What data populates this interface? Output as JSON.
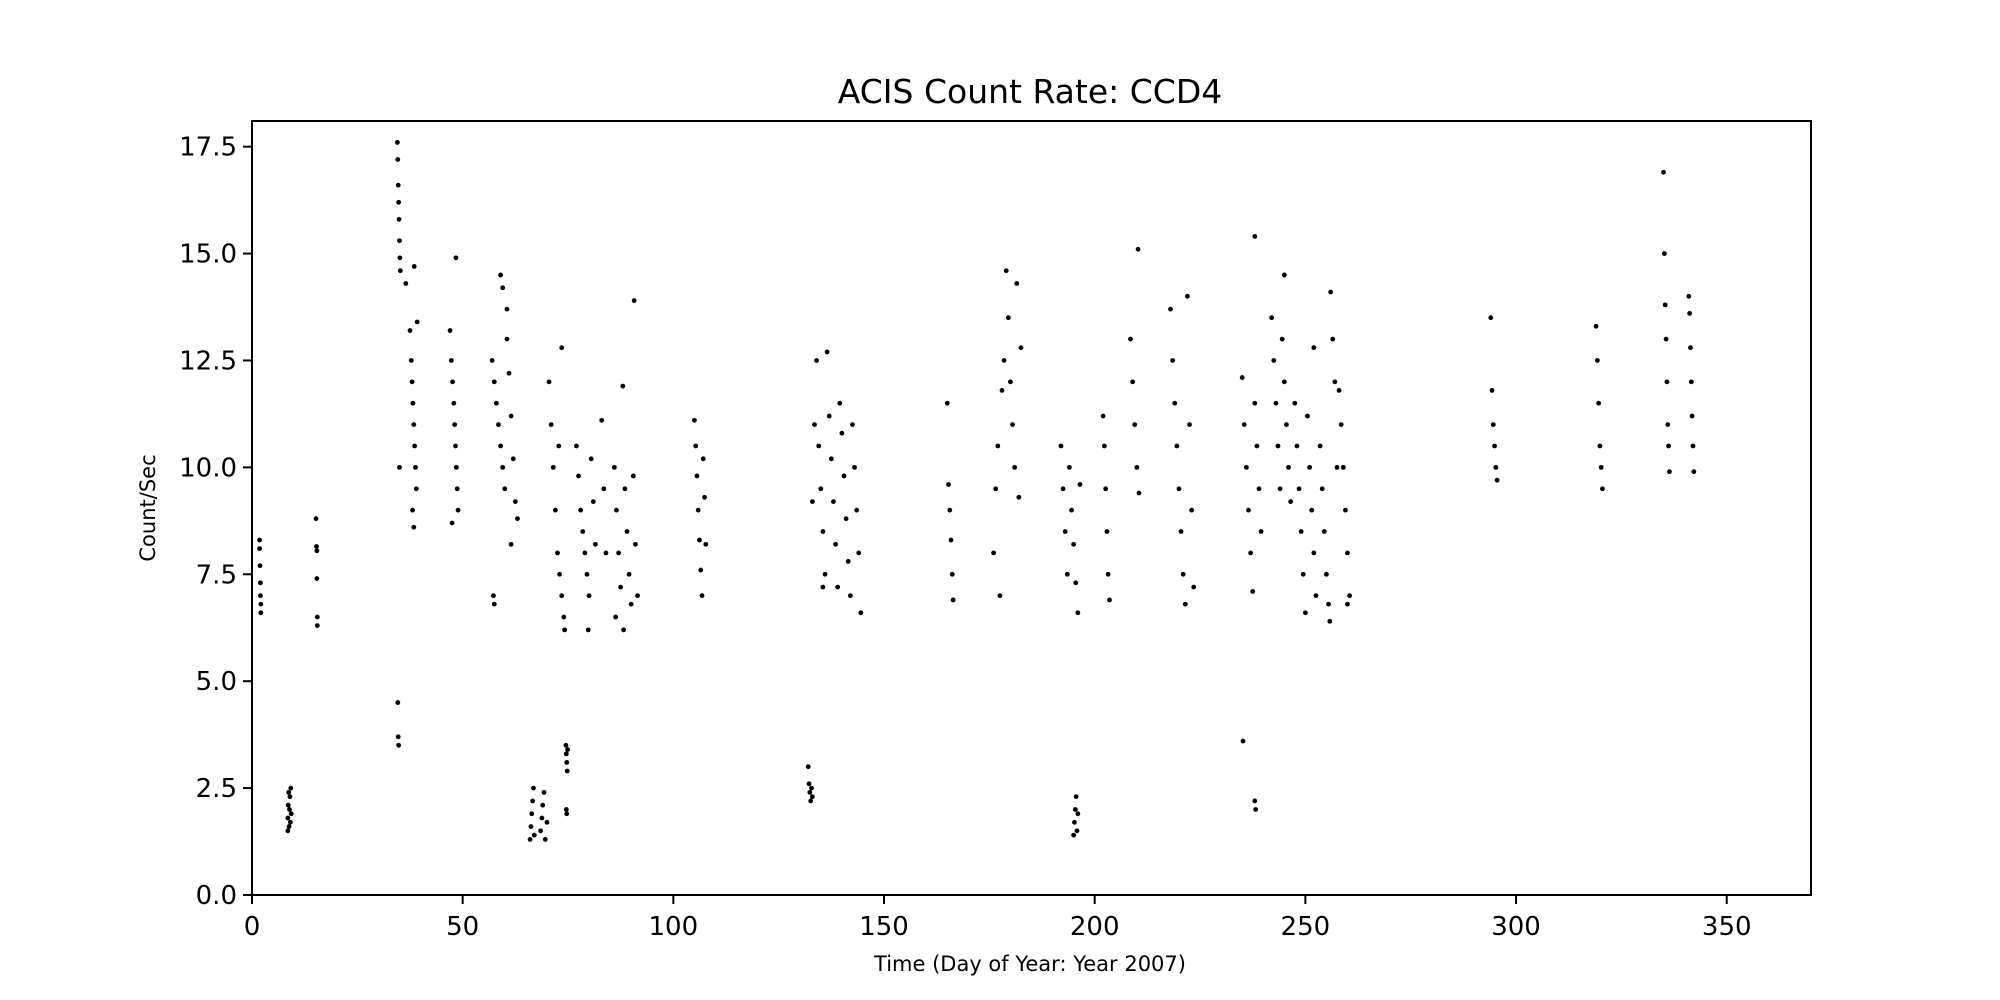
{
  "chart_data": {
    "type": "scatter",
    "title": "ACIS Count Rate: CCD4",
    "xlabel": "Time (Day of Year: Year 2007)",
    "ylabel": "Count/Sec",
    "xlim": [
      0,
      370
    ],
    "ylim": [
      0,
      18.1
    ],
    "xticks": [
      0,
      50,
      100,
      150,
      200,
      250,
      300,
      350
    ],
    "xtick_labels": [
      "0",
      "50",
      "100",
      "150",
      "200",
      "250",
      "300",
      "350"
    ],
    "yticks": [
      0,
      2.5,
      5,
      7.5,
      10,
      12.5,
      15,
      17.5
    ],
    "ytick_labels": [
      "0.0",
      "2.5",
      "5.0",
      "7.5",
      "10.0",
      "12.5",
      "15.0",
      "17.5"
    ],
    "grid": false,
    "legend": "none",
    "marker_color": "#000000",
    "series": [
      {
        "points": [
          [
            1.8,
            8.3
          ],
          [
            1.8,
            8.1
          ],
          [
            1.9,
            7.7
          ],
          [
            2.0,
            7.3
          ],
          [
            2.0,
            7.0
          ],
          [
            2.1,
            6.8
          ],
          [
            2.1,
            6.6
          ],
          [
            8.5,
            1.5
          ],
          [
            8.5,
            1.8
          ],
          [
            8.6,
            2.1
          ],
          [
            8.7,
            2.4
          ],
          [
            8.8,
            1.6
          ],
          [
            8.9,
            2.0
          ],
          [
            9.0,
            2.3
          ],
          [
            9.1,
            1.7
          ],
          [
            9.2,
            2.5
          ],
          [
            9.3,
            1.9
          ],
          [
            15.2,
            8.8
          ],
          [
            15.3,
            8.15
          ],
          [
            15.4,
            8.05
          ],
          [
            15.4,
            7.4
          ],
          [
            15.5,
            6.5
          ],
          [
            15.5,
            6.3
          ],
          [
            34.5,
            17.6
          ],
          [
            34.6,
            17.2
          ],
          [
            34.7,
            16.6
          ],
          [
            34.8,
            16.2
          ],
          [
            34.9,
            15.8
          ],
          [
            35.0,
            15.3
          ],
          [
            35.1,
            14.9
          ],
          [
            35.2,
            14.6
          ],
          [
            35.0,
            10.0
          ],
          [
            34.6,
            4.5
          ],
          [
            34.7,
            3.7
          ],
          [
            34.8,
            3.5
          ],
          [
            36.5,
            14.3
          ],
          [
            38.5,
            14.7
          ],
          [
            37.5,
            13.2
          ],
          [
            37.8,
            12.5
          ],
          [
            38.0,
            12.0
          ],
          [
            38.2,
            11.5
          ],
          [
            38.4,
            11.0
          ],
          [
            38.6,
            10.5
          ],
          [
            38.8,
            10.0
          ],
          [
            39.0,
            9.5
          ],
          [
            38.1,
            9.0
          ],
          [
            38.4,
            8.6
          ],
          [
            39.2,
            13.4
          ],
          [
            47.0,
            13.2
          ],
          [
            47.3,
            12.5
          ],
          [
            47.6,
            12.0
          ],
          [
            47.9,
            11.5
          ],
          [
            48.1,
            11.0
          ],
          [
            48.3,
            10.5
          ],
          [
            48.5,
            10.0
          ],
          [
            48.7,
            9.5
          ],
          [
            48.9,
            9.0
          ],
          [
            47.5,
            8.7
          ],
          [
            48.4,
            14.9
          ],
          [
            57.0,
            12.5
          ],
          [
            57.5,
            12.0
          ],
          [
            58.0,
            11.5
          ],
          [
            58.5,
            11.0
          ],
          [
            59.0,
            10.5
          ],
          [
            59.5,
            10.0
          ],
          [
            60.0,
            9.5
          ],
          [
            60.5,
            13.0
          ],
          [
            61.0,
            12.2
          ],
          [
            61.5,
            11.2
          ],
          [
            62.0,
            10.2
          ],
          [
            62.5,
            9.2
          ],
          [
            63.0,
            8.8
          ],
          [
            59.0,
            14.5
          ],
          [
            59.5,
            14.2
          ],
          [
            60.5,
            13.7
          ],
          [
            57.3,
            7.0
          ],
          [
            57.5,
            6.8
          ],
          [
            61.5,
            8.2
          ],
          [
            66.0,
            1.3
          ],
          [
            66.2,
            1.6
          ],
          [
            66.4,
            1.9
          ],
          [
            66.6,
            2.2
          ],
          [
            66.8,
            2.5
          ],
          [
            67.0,
            1.4
          ],
          [
            68.5,
            1.5
          ],
          [
            68.8,
            1.8
          ],
          [
            69.0,
            2.1
          ],
          [
            69.3,
            2.4
          ],
          [
            69.6,
            1.3
          ],
          [
            70.0,
            1.7
          ],
          [
            70.5,
            12.0
          ],
          [
            71.0,
            11.0
          ],
          [
            71.5,
            10.0
          ],
          [
            72.0,
            9.0
          ],
          [
            72.5,
            8.0
          ],
          [
            73.0,
            7.5
          ],
          [
            73.5,
            7.0
          ],
          [
            74.0,
            6.5
          ],
          [
            74.2,
            6.2
          ],
          [
            73.5,
            12.8
          ],
          [
            72.8,
            10.5
          ],
          [
            74.5,
            3.5
          ],
          [
            74.6,
            3.3
          ],
          [
            74.7,
            3.1
          ],
          [
            74.8,
            2.9
          ],
          [
            74.9,
            3.4
          ],
          [
            74.6,
            2.0
          ],
          [
            74.7,
            1.9
          ],
          [
            77.0,
            10.5
          ],
          [
            77.5,
            9.8
          ],
          [
            78.0,
            9.0
          ],
          [
            78.5,
            8.5
          ],
          [
            79.0,
            8.0
          ],
          [
            79.5,
            7.5
          ],
          [
            80.0,
            7.0
          ],
          [
            80.5,
            10.2
          ],
          [
            81.0,
            9.2
          ],
          [
            81.5,
            8.2
          ],
          [
            79.8,
            6.2
          ],
          [
            83.0,
            11.1
          ],
          [
            83.5,
            9.5
          ],
          [
            84.0,
            8.0
          ],
          [
            86.0,
            10.0
          ],
          [
            86.5,
            9.0
          ],
          [
            87.0,
            8.0
          ],
          [
            87.5,
            7.2
          ],
          [
            88.0,
            11.9
          ],
          [
            88.5,
            9.5
          ],
          [
            89.0,
            8.5
          ],
          [
            89.5,
            7.5
          ],
          [
            90.0,
            6.8
          ],
          [
            90.5,
            9.8
          ],
          [
            91.0,
            8.2
          ],
          [
            91.5,
            7.0
          ],
          [
            90.7,
            13.9
          ],
          [
            88.2,
            6.2
          ],
          [
            86.3,
            6.5
          ],
          [
            105.0,
            11.1
          ],
          [
            105.3,
            10.5
          ],
          [
            105.6,
            9.8
          ],
          [
            105.9,
            9.0
          ],
          [
            106.2,
            8.3
          ],
          [
            106.5,
            7.6
          ],
          [
            106.8,
            7.0
          ],
          [
            107.1,
            10.2
          ],
          [
            107.4,
            9.3
          ],
          [
            107.7,
            8.2
          ],
          [
            132.0,
            3.0
          ],
          [
            132.2,
            2.6
          ],
          [
            132.4,
            2.4
          ],
          [
            132.6,
            2.2
          ],
          [
            132.8,
            2.5
          ],
          [
            133.0,
            2.3
          ],
          [
            133.0,
            9.2
          ],
          [
            133.5,
            11.0
          ],
          [
            134.0,
            12.5
          ],
          [
            134.5,
            10.5
          ],
          [
            135.0,
            9.5
          ],
          [
            135.5,
            8.5
          ],
          [
            136.0,
            7.5
          ],
          [
            136.5,
            12.7
          ],
          [
            137.0,
            11.2
          ],
          [
            137.5,
            10.2
          ],
          [
            138.0,
            9.2
          ],
          [
            138.5,
            8.2
          ],
          [
            139.0,
            7.2
          ],
          [
            139.5,
            11.5
          ],
          [
            140.0,
            10.8
          ],
          [
            140.5,
            9.8
          ],
          [
            141.0,
            8.8
          ],
          [
            141.5,
            7.8
          ],
          [
            142.0,
            7.0
          ],
          [
            142.5,
            11.0
          ],
          [
            143.0,
            10.0
          ],
          [
            143.5,
            9.0
          ],
          [
            144.0,
            8.0
          ],
          [
            144.5,
            6.6
          ],
          [
            135.5,
            7.2
          ],
          [
            165.0,
            11.5
          ],
          [
            165.3,
            9.6
          ],
          [
            165.6,
            9.0
          ],
          [
            165.9,
            8.3
          ],
          [
            166.2,
            7.5
          ],
          [
            166.4,
            6.9
          ],
          [
            176.0,
            8.0
          ],
          [
            176.5,
            9.5
          ],
          [
            177.0,
            10.5
          ],
          [
            177.5,
            7.0
          ],
          [
            178.0,
            11.8
          ],
          [
            178.5,
            12.5
          ],
          [
            179.0,
            14.6
          ],
          [
            179.5,
            13.5
          ],
          [
            180.0,
            12.0
          ],
          [
            180.5,
            11.0
          ],
          [
            181.0,
            10.0
          ],
          [
            181.5,
            14.3
          ],
          [
            182.0,
            9.3
          ],
          [
            182.5,
            12.8
          ],
          [
            192.0,
            10.5
          ],
          [
            192.5,
            9.5
          ],
          [
            193.0,
            8.5
          ],
          [
            193.5,
            7.5
          ],
          [
            194.0,
            10.0
          ],
          [
            194.5,
            9.0
          ],
          [
            195.0,
            8.2
          ],
          [
            195.5,
            7.3
          ],
          [
            196.0,
            6.6
          ],
          [
            196.5,
            9.6
          ],
          [
            195.0,
            1.4
          ],
          [
            195.2,
            1.7
          ],
          [
            195.4,
            2.0
          ],
          [
            195.6,
            2.3
          ],
          [
            195.8,
            1.5
          ],
          [
            196.0,
            1.9
          ],
          [
            202.0,
            11.2
          ],
          [
            202.3,
            10.5
          ],
          [
            202.6,
            9.5
          ],
          [
            202.9,
            8.5
          ],
          [
            203.2,
            7.5
          ],
          [
            203.5,
            6.9
          ],
          [
            208.5,
            13.0
          ],
          [
            209.0,
            12.0
          ],
          [
            209.5,
            11.0
          ],
          [
            210.0,
            10.0
          ],
          [
            210.5,
            9.4
          ],
          [
            210.3,
            15.1
          ],
          [
            218.0,
            13.7
          ],
          [
            218.5,
            12.5
          ],
          [
            219.0,
            11.5
          ],
          [
            219.5,
            10.5
          ],
          [
            220.0,
            9.5
          ],
          [
            220.5,
            8.5
          ],
          [
            221.0,
            7.5
          ],
          [
            221.5,
            6.8
          ],
          [
            222.0,
            14.0
          ],
          [
            222.5,
            11.0
          ],
          [
            223.0,
            9.0
          ],
          [
            223.5,
            7.2
          ],
          [
            235.0,
            12.1
          ],
          [
            235.5,
            11.0
          ],
          [
            236.0,
            10.0
          ],
          [
            236.5,
            9.0
          ],
          [
            237.0,
            8.0
          ],
          [
            237.5,
            7.1
          ],
          [
            238.0,
            11.5
          ],
          [
            238.5,
            10.5
          ],
          [
            239.0,
            9.5
          ],
          [
            239.5,
            8.5
          ],
          [
            238.0,
            15.4
          ],
          [
            235.2,
            3.6
          ],
          [
            238.0,
            2.2
          ],
          [
            238.2,
            2.0
          ],
          [
            242.0,
            13.5
          ],
          [
            242.5,
            12.5
          ],
          [
            243.0,
            11.5
          ],
          [
            243.5,
            10.5
          ],
          [
            244.0,
            9.5
          ],
          [
            244.5,
            13.0
          ],
          [
            245.0,
            12.0
          ],
          [
            245.5,
            11.0
          ],
          [
            246.0,
            10.0
          ],
          [
            246.5,
            9.2
          ],
          [
            245.0,
            14.5
          ],
          [
            247.5,
            11.5
          ],
          [
            248.0,
            10.5
          ],
          [
            248.5,
            9.5
          ],
          [
            249.0,
            8.5
          ],
          [
            249.5,
            7.5
          ],
          [
            250.0,
            6.6
          ],
          [
            250.5,
            11.2
          ],
          [
            251.0,
            10.0
          ],
          [
            251.5,
            9.0
          ],
          [
            252.0,
            8.0
          ],
          [
            252.5,
            7.0
          ],
          [
            252.0,
            12.8
          ],
          [
            253.5,
            10.5
          ],
          [
            254.0,
            9.5
          ],
          [
            254.5,
            8.5
          ],
          [
            255.0,
            7.5
          ],
          [
            255.5,
            6.8
          ],
          [
            256.0,
            14.1
          ],
          [
            256.5,
            13.0
          ],
          [
            257.0,
            12.0
          ],
          [
            257.5,
            10.0
          ],
          [
            255.8,
            6.4
          ],
          [
            258.0,
            11.8
          ],
          [
            258.5,
            11.0
          ],
          [
            259.0,
            10.0
          ],
          [
            259.5,
            9.0
          ],
          [
            260.0,
            8.0
          ],
          [
            260.5,
            7.0
          ],
          [
            260.0,
            6.8
          ],
          [
            294.0,
            13.5
          ],
          [
            294.3,
            11.8
          ],
          [
            294.6,
            11.0
          ],
          [
            294.9,
            10.5
          ],
          [
            295.2,
            10.0
          ],
          [
            295.5,
            9.7
          ],
          [
            319.0,
            13.3
          ],
          [
            319.3,
            12.5
          ],
          [
            319.6,
            11.5
          ],
          [
            319.9,
            10.5
          ],
          [
            320.2,
            10.0
          ],
          [
            320.5,
            9.5
          ],
          [
            335.0,
            16.9
          ],
          [
            335.2,
            15.0
          ],
          [
            335.4,
            13.8
          ],
          [
            335.6,
            13.0
          ],
          [
            335.8,
            12.0
          ],
          [
            336.0,
            11.0
          ],
          [
            336.2,
            10.5
          ],
          [
            336.4,
            9.9
          ],
          [
            341.0,
            14.0
          ],
          [
            341.2,
            13.6
          ],
          [
            341.4,
            12.8
          ],
          [
            341.6,
            12.0
          ],
          [
            341.8,
            11.2
          ],
          [
            342.0,
            10.5
          ],
          [
            342.2,
            9.9
          ]
        ]
      }
    ]
  }
}
